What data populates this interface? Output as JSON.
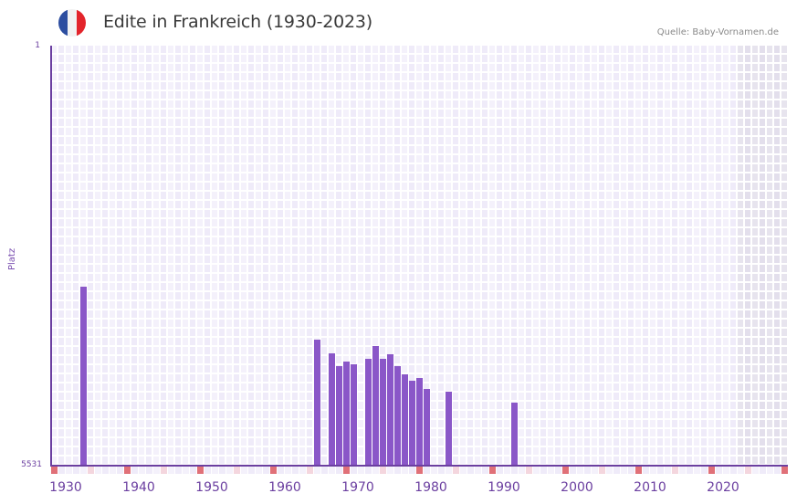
{
  "header": {
    "title": "Edite in Frankreich (1930-2023)",
    "source": "Quelle: Baby-Vornamen.de",
    "flag": {
      "icon": "france-flag-icon",
      "colors": [
        "#2d4ea0",
        "#f2f2f2",
        "#e3242b"
      ]
    }
  },
  "axis": {
    "y_label": "Platz",
    "y_top_label": "1",
    "y_bottom_label": "5531",
    "x_ticks": [
      "1930",
      "1940",
      "1950",
      "1960",
      "1970",
      "1980",
      "1990",
      "2000",
      "2010",
      "2020"
    ]
  },
  "colors": {
    "bar": "#8a57c8",
    "axis": "#6b3fa0",
    "cell_a": "#efebf9",
    "cell_b": "#f4f1fb",
    "cell_future_a": "#e3dfec",
    "cell_future_b": "#e7e4ee",
    "marker_decade": "#e07078",
    "marker_half": "#f4d6de"
  },
  "chart_data": {
    "type": "bar",
    "title": "Edite in Frankreich (1930-2023)",
    "xlabel": "",
    "ylabel": "Platz",
    "y_inverted": true,
    "ylim": [
      1,
      5531
    ],
    "x_range": [
      1930,
      2030
    ],
    "grid": true,
    "x_ticks": [
      1930,
      1940,
      1950,
      1960,
      1970,
      1980,
      1990,
      2000,
      2010,
      2020
    ],
    "categories": [
      1934,
      1966,
      1968,
      1969,
      1970,
      1971,
      1973,
      1974,
      1975,
      1976,
      1977,
      1978,
      1979,
      1980,
      1981,
      1984,
      1993
    ],
    "values": [
      3174,
      3871,
      4051,
      4220,
      4160,
      4196,
      4124,
      3956,
      4124,
      4064,
      4220,
      4328,
      4413,
      4377,
      4521,
      4557,
      4701
    ],
    "series": [
      {
        "name": "Platz",
        "values": [
          3174,
          3871,
          4051,
          4220,
          4160,
          4196,
          4124,
          3956,
          4124,
          4064,
          4220,
          4328,
          4413,
          4377,
          4521,
          4557,
          4701
        ]
      }
    ],
    "annotations": [
      "Quelle: Baby-Vornamen.de"
    ]
  }
}
